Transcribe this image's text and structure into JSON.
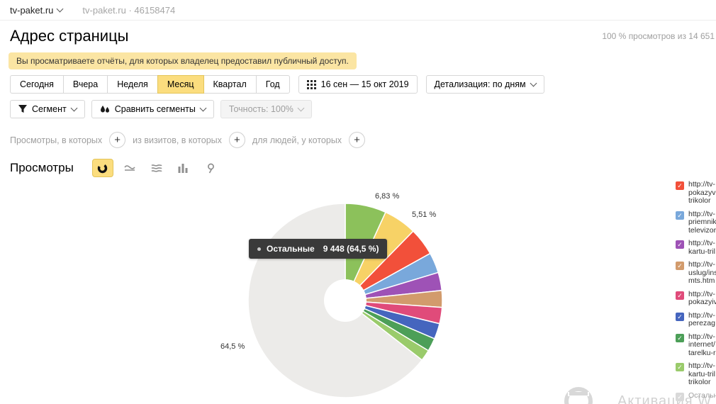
{
  "topbar": {
    "site": "tv-paket.ru",
    "site_info": "tv-paket.ru · 46158474"
  },
  "header": {
    "title": "Адрес страницы",
    "summary": "100 % просмотров из 14 651"
  },
  "notice": {
    "text": "Вы просматриваете отчёты, для которых владелец предоставил публичный доступ."
  },
  "toolbar": {
    "period_tabs": [
      {
        "label": "Сегодня",
        "selected": false
      },
      {
        "label": "Вчера",
        "selected": false
      },
      {
        "label": "Неделя",
        "selected": false
      },
      {
        "label": "Месяц",
        "selected": true
      },
      {
        "label": "Квартал",
        "selected": false
      },
      {
        "label": "Год",
        "selected": false
      }
    ],
    "date_range": "16 сен — 15 окт 2019",
    "detalization": "Детализация: по дням"
  },
  "segments": {
    "segment_label": "Сегмент",
    "compare_label": "Сравнить сегменты",
    "accuracy_label": "Точность: 100%"
  },
  "filters": [
    {
      "label": "Просмотры, в которых"
    },
    {
      "label": "из визитов, в которых"
    },
    {
      "label": "для людей, у которых"
    }
  ],
  "metric": {
    "title": "Просмотры"
  },
  "tooltip": {
    "name": "Остальные",
    "value": "9 448 (64,5 %)",
    "marker_color": "#c9c9c9"
  },
  "chart_data": {
    "type": "pie",
    "title": "Просмотры",
    "total": 14651,
    "legend_position": "right",
    "slices": [
      {
        "color": "#8CC15B",
        "percent": 6.83
      },
      {
        "color": "#F7D266",
        "percent": 5.51
      },
      {
        "color": "#F2503A",
        "percent": 4.6
      },
      {
        "color": "#79A8DB",
        "percent": 3.4
      },
      {
        "color": "#9E52B6",
        "percent": 3.0
      },
      {
        "color": "#D29B6C",
        "percent": 2.8
      },
      {
        "color": "#E04B7A",
        "percent": 2.7
      },
      {
        "color": "#4565BE",
        "percent": 2.6
      },
      {
        "color": "#4C9F58",
        "percent": 2.2
      },
      {
        "color": "#9ACB6B",
        "percent": 1.86
      },
      {
        "name": "Остальные",
        "color": "#ECEBE9",
        "percent": 64.5,
        "value": 9448
      }
    ],
    "callouts": [
      {
        "text": "6,83 %"
      },
      {
        "text": "5,51 %"
      },
      {
        "text": "64,5 %"
      }
    ]
  },
  "legend": {
    "items": [
      {
        "color": "#F2503A",
        "checked": true,
        "lines": [
          "http://tv-",
          "pokazyv",
          "trikolor"
        ]
      },
      {
        "color": "#79A8DB",
        "checked": true,
        "lines": [
          "http://tv-",
          "priemnik",
          "televizor"
        ]
      },
      {
        "color": "#9E52B6",
        "checked": true,
        "lines": [
          "http://tv-",
          "kartu-tril"
        ]
      },
      {
        "color": "#D29B6C",
        "checked": true,
        "lines": [
          "http://tv-",
          "uslug/ins",
          "mts.htm"
        ]
      },
      {
        "color": "#E04B7A",
        "checked": true,
        "lines": [
          "http://tv-",
          "pokazyiv"
        ]
      },
      {
        "color": "#4565BE",
        "checked": true,
        "lines": [
          "http://tv-",
          "perezag"
        ]
      },
      {
        "color": "#4C9F58",
        "checked": true,
        "lines": [
          "http://tv-",
          "internet/",
          "tarelku-r"
        ]
      },
      {
        "color": "#9ACB6B",
        "checked": true,
        "lines": [
          "http://tv-",
          "kartu-tril",
          "trikolor"
        ]
      },
      {
        "color": "#d9d9d9",
        "checked": true,
        "muted": true,
        "lines": [
          "Остальн"
        ]
      }
    ]
  },
  "watermark": {
    "text": "Активация W"
  }
}
